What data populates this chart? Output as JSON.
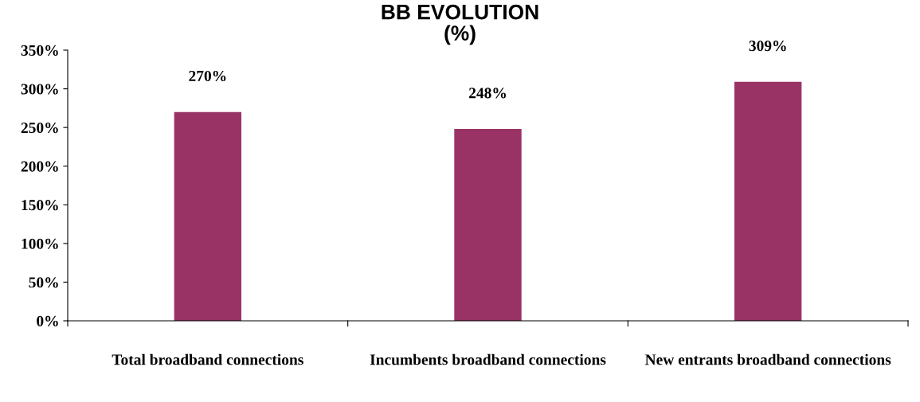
{
  "chart_data": {
    "type": "bar",
    "title": "BB EVOLUTION\n(%)",
    "categories": [
      "Total broadband connections",
      "Incumbents broadband connections",
      "New entrants broadband connections"
    ],
    "values": [
      270,
      248,
      309
    ],
    "color": "#993366",
    "value_labels": [
      "270%",
      "248%",
      "309%"
    ],
    "ylim": [
      0,
      350
    ],
    "yticks": [
      {
        "value": 0,
        "label": "0%"
      },
      {
        "value": 50,
        "label": "50%"
      },
      {
        "value": 100,
        "label": "100%"
      },
      {
        "value": 150,
        "label": "150%"
      },
      {
        "value": 200,
        "label": "200%"
      },
      {
        "value": 250,
        "label": "250%"
      },
      {
        "value": 300,
        "label": "300%"
      },
      {
        "value": 350,
        "label": "350%"
      }
    ],
    "grid": false
  }
}
